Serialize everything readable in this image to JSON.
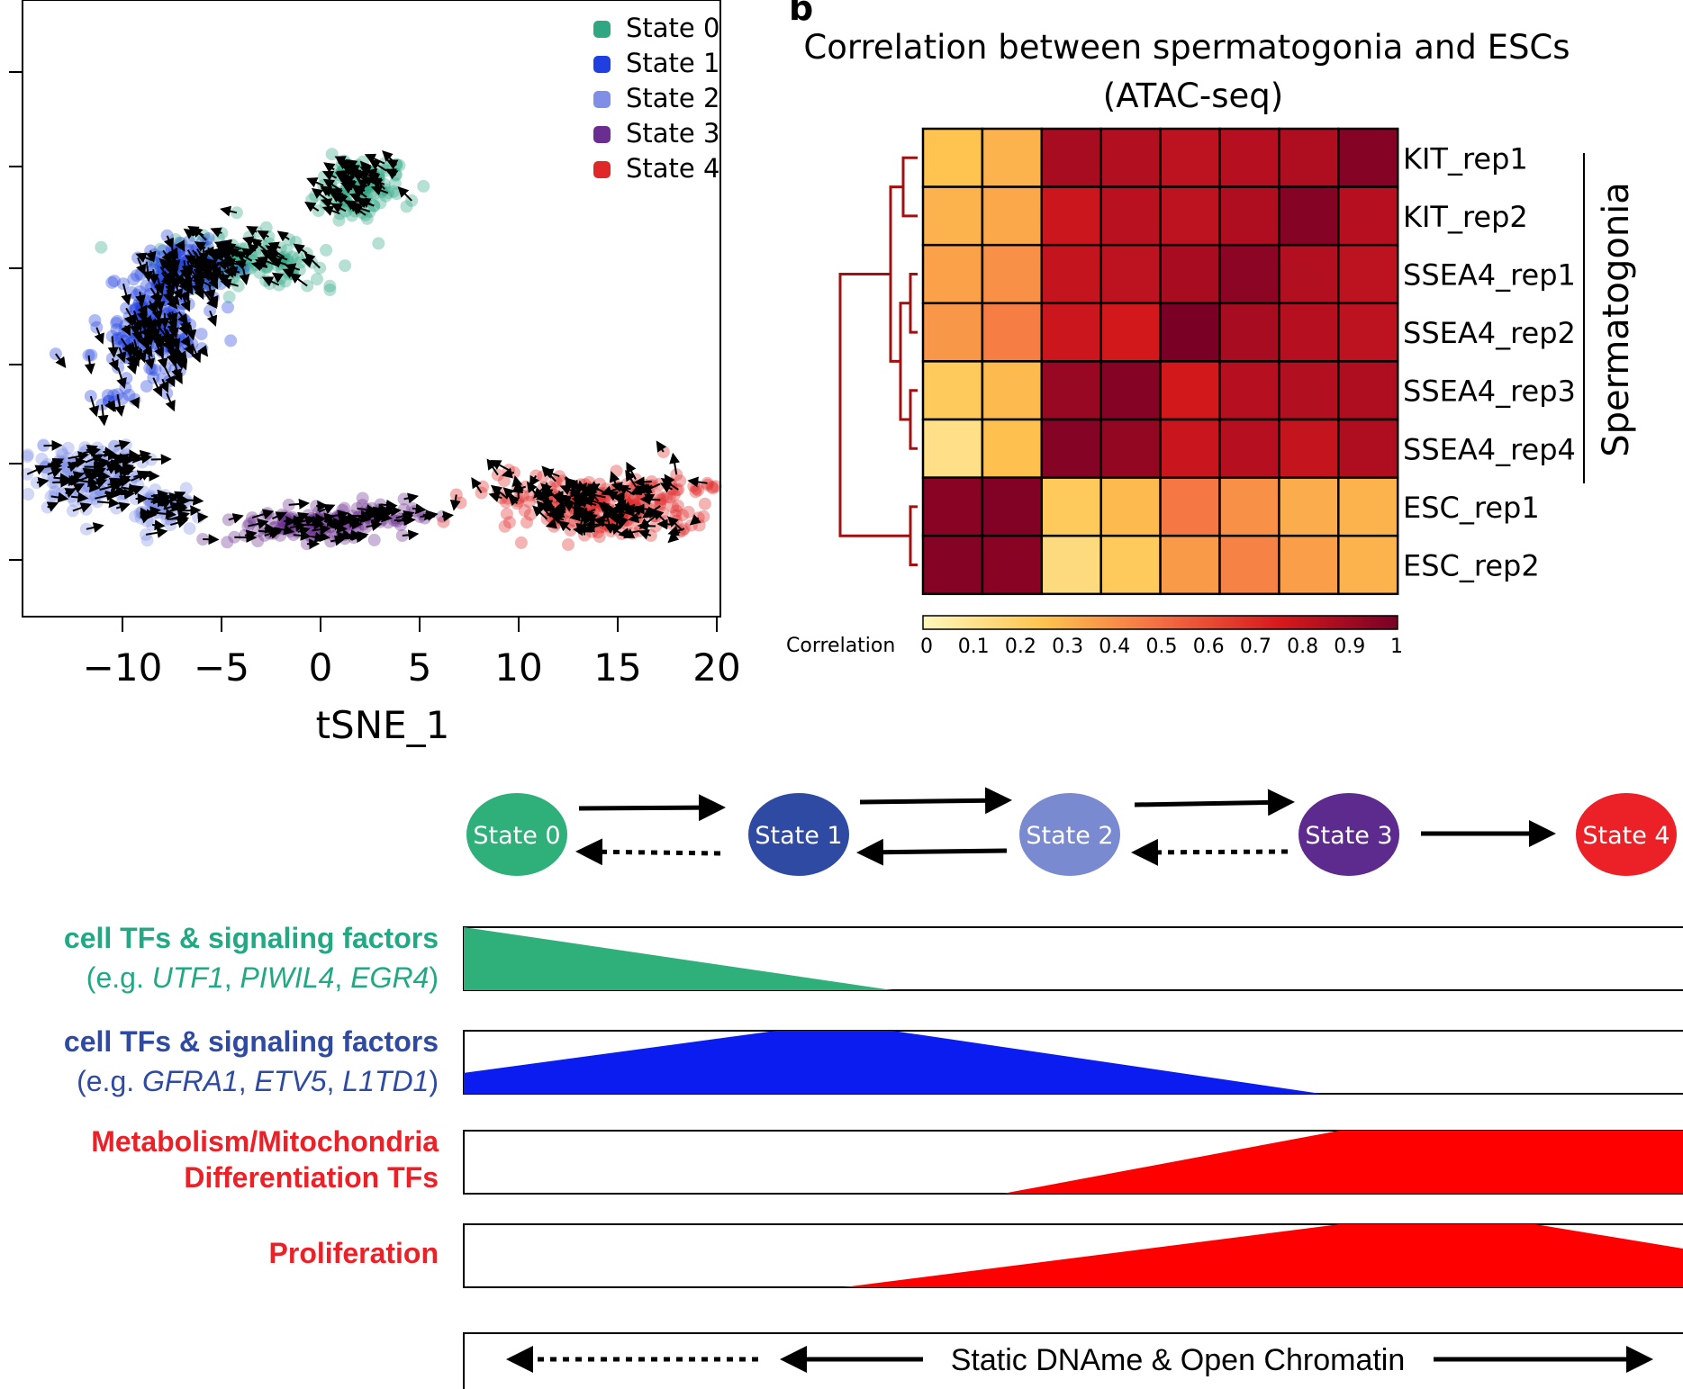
{
  "figure": {
    "panel_b_letter": "b"
  },
  "chart_data": [
    {
      "type": "scatter",
      "title": "",
      "xlabel": "tSNE_1",
      "ylabel": "",
      "xlim": [
        -15.5,
        20.5
      ],
      "x_ticks": [
        "−10",
        "−5",
        "0",
        "5",
        "10",
        "15",
        "20"
      ],
      "x_tick_values": [
        -10,
        -5,
        0,
        5,
        10,
        15,
        20
      ],
      "y_tick_count": 6,
      "legend_position": "top-right",
      "series": [
        {
          "name": "State 0",
          "color": "#2fa783",
          "clusters": [
            [
              2,
              6,
              2.2,
              1.4,
              120
            ],
            [
              -3.8,
              2.2,
              3.8,
              1.2,
              130
            ]
          ]
        },
        {
          "name": "State 1",
          "color": "#1f3fe0",
          "clusters": [
            [
              -8.5,
              -1.2,
              2.2,
              2.6,
              190
            ],
            [
              -6.7,
              2.0,
              2.0,
              1.2,
              110
            ],
            [
              -10.5,
              -4.8,
              1.0,
              0.4,
              10
            ]
          ]
        },
        {
          "name": "State 2",
          "color": "#7f8fe6",
          "clusters": [
            [
              -11.6,
              -8.6,
              2.6,
              1.5,
              140
            ],
            [
              -8.3,
              -10.1,
              1.8,
              1.0,
              60
            ]
          ]
        },
        {
          "name": "State 3",
          "color": "#6a2d90",
          "clusters": [
            [
              -0.5,
              -11.1,
              3.5,
              0.7,
              110
            ],
            [
              3.2,
              -10.6,
              1.6,
              0.6,
              40
            ]
          ]
        },
        {
          "name": "State 4",
          "color": "#e02828",
          "clusters": [
            [
              13.5,
              -9.8,
              5.2,
              1.3,
              200
            ],
            [
              15.5,
              -10.8,
              3.5,
              0.6,
              60
            ]
          ]
        }
      ]
    },
    {
      "type": "heatmap",
      "title": "Correlation between spermatogonia and ESCs",
      "subtitle": "(ATAC-seq)",
      "rows": [
        "KIT_rep1",
        "KIT_rep2",
        "SSEA4_rep1",
        "SSEA4_rep2",
        "SSEA4_rep3",
        "SSEA4_rep4",
        "ESC_rep1",
        "ESC_rep2"
      ],
      "values": [
        [
          0.25,
          0.3,
          0.88,
          0.85,
          0.82,
          0.84,
          0.86,
          0.97
        ],
        [
          0.3,
          0.33,
          0.78,
          0.83,
          0.82,
          0.86,
          0.97,
          0.84
        ],
        [
          0.35,
          0.4,
          0.8,
          0.82,
          0.88,
          0.95,
          0.85,
          0.82
        ],
        [
          0.38,
          0.45,
          0.78,
          0.76,
          1.0,
          0.88,
          0.84,
          0.82
        ],
        [
          0.22,
          0.28,
          0.92,
          0.97,
          0.76,
          0.84,
          0.85,
          0.86
        ],
        [
          0.12,
          0.26,
          0.97,
          0.93,
          0.79,
          0.84,
          0.8,
          0.86
        ],
        [
          0.96,
          0.98,
          0.22,
          0.28,
          0.47,
          0.4,
          0.32,
          0.3
        ],
        [
          0.97,
          0.96,
          0.14,
          0.22,
          0.37,
          0.44,
          0.36,
          0.3
        ]
      ],
      "group_label": "Spermatogonia",
      "colorbar_label": "Correlation",
      "colorbar_ticks": [
        "0",
        "0.1",
        "0.2",
        "0.3",
        "0.4",
        "0.5",
        "0.6",
        "0.7",
        "0.8",
        "0.9",
        "1"
      ],
      "colorbar_range": [
        0,
        1
      ]
    }
  ],
  "states": [
    "State 0",
    "State 1",
    "State 2",
    "State 3",
    "State 4"
  ],
  "state_colors": [
    "#2fb07b",
    "#2e4aa2",
    "#7a8ad0",
    "#5d2b8e",
    "#ec2027"
  ],
  "tracks": [
    {
      "label_line1": "cell TFs & signaling factors",
      "label_line2_prefix": "(e.g. ",
      "genes": [
        "UTF1",
        "PIWIL4",
        "EGR4"
      ],
      "label_line2_suffix": ")",
      "color": "#2fb07b",
      "text_color": "#23a884",
      "profile": [
        [
          0,
          1
        ],
        [
          0.35,
          0
        ]
      ]
    },
    {
      "label_line1": "cell TFs & signaling factors",
      "label_line2_prefix": "(e.g. ",
      "genes": [
        "GFRA1",
        "ETV5",
        "L1TD1"
      ],
      "label_line2_suffix": ")",
      "color": "#0a1cef",
      "text_color": "#2e4aa2",
      "profile": [
        [
          0,
          0.33
        ],
        [
          0.255,
          1
        ],
        [
          0.35,
          1
        ],
        [
          0.7,
          0
        ]
      ]
    },
    {
      "label_line1": "Metabolism/Mitochondria",
      "label_line2": "Differentiation TFs",
      "color": "#ff0000",
      "text_color": "#ec2027",
      "profile": [
        [
          0.44,
          0
        ],
        [
          0.715,
          1
        ],
        [
          1,
          1
        ]
      ]
    },
    {
      "label_line1": "Proliferation",
      "color": "#ff0000",
      "text_color": "#ec2027",
      "profile": [
        [
          0.31,
          0
        ],
        [
          0.715,
          1
        ],
        [
          0.875,
          1
        ],
        [
          1,
          0.6
        ]
      ]
    }
  ],
  "bottom_bar": {
    "label": "Static DNAme & Open Chromatin"
  }
}
